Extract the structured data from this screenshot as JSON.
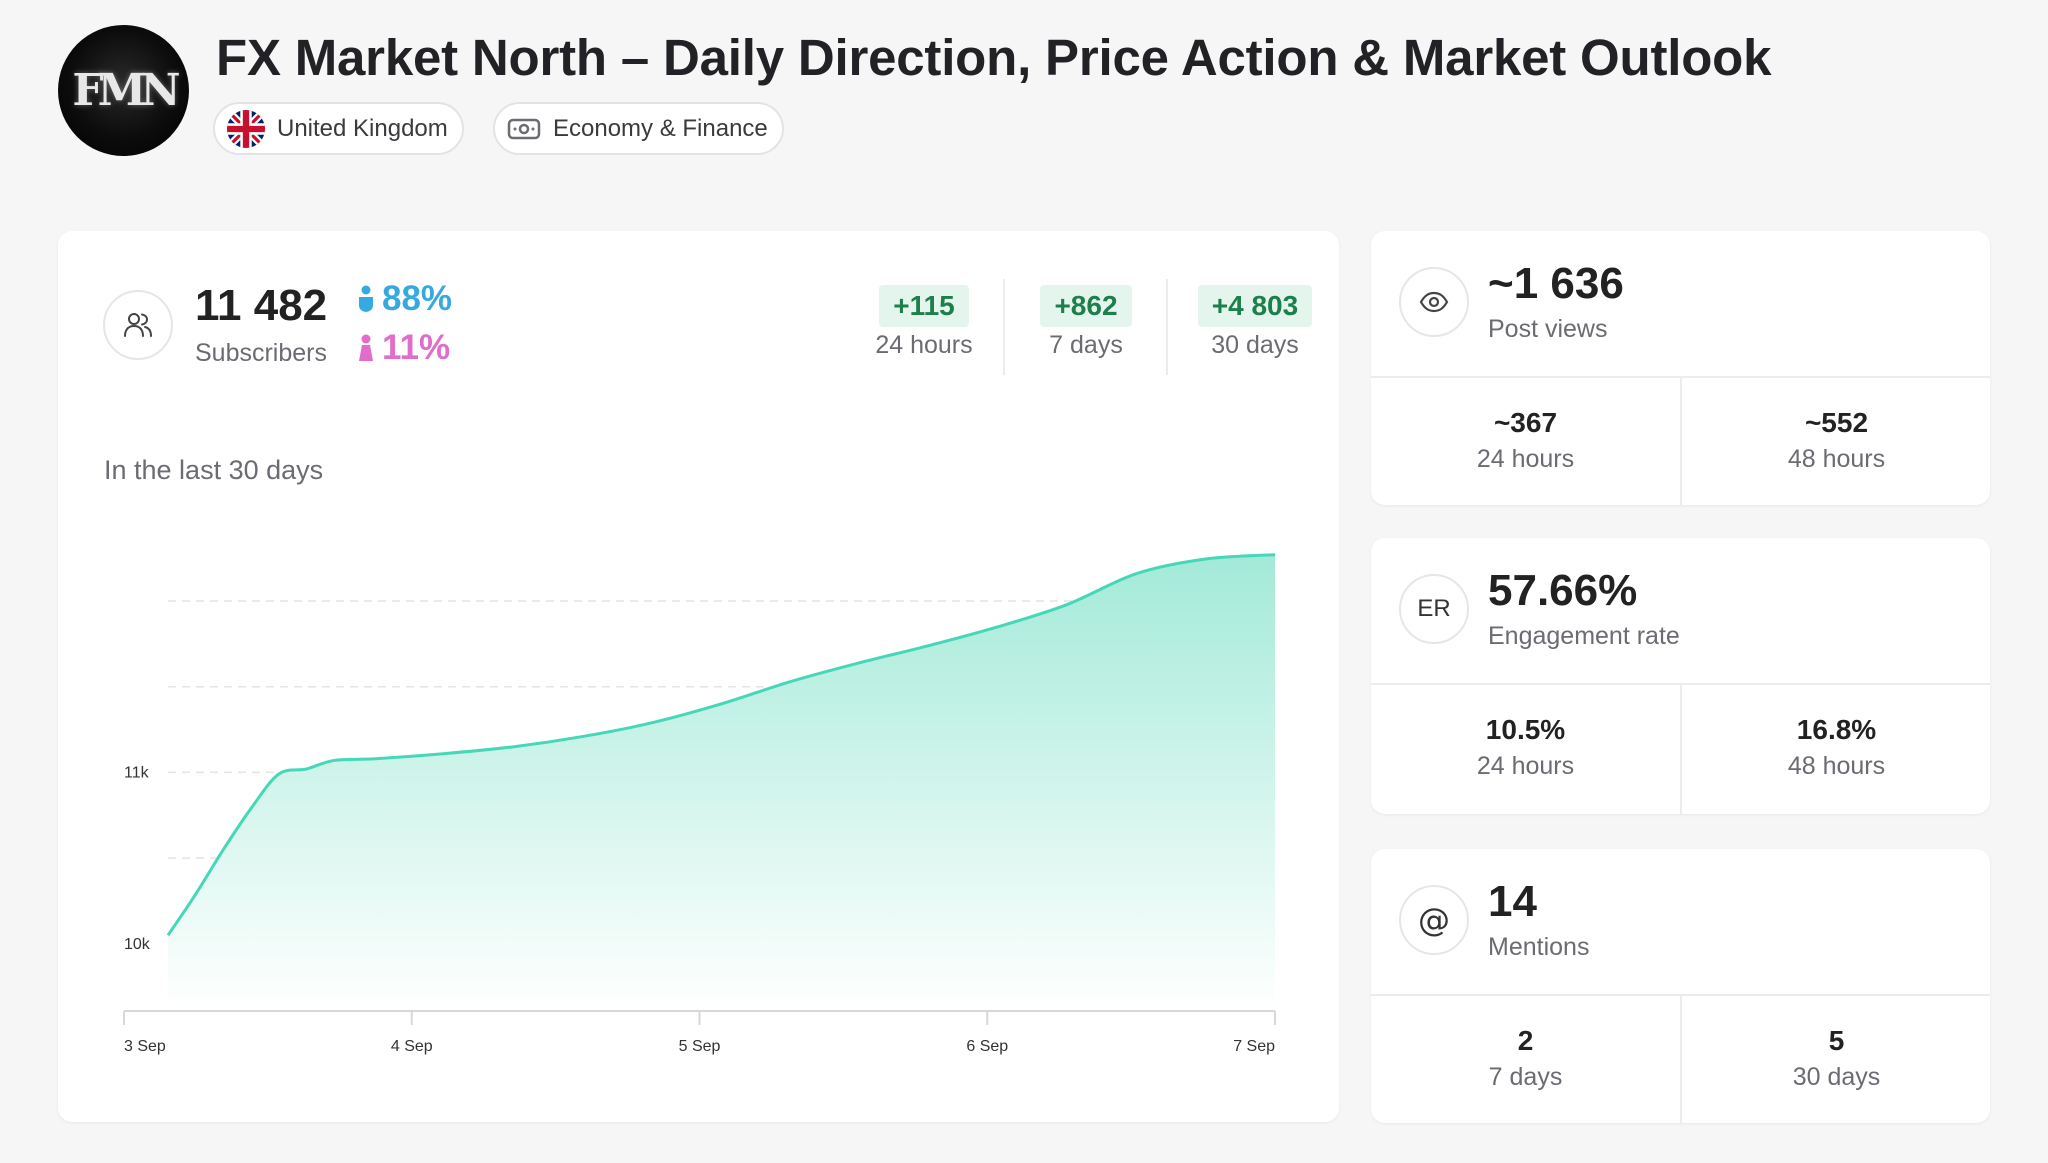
{
  "header": {
    "title": "FX Market North – Daily Direction, Price Action & Market Outlook",
    "avatar_text": "FMN",
    "chips": [
      {
        "label": "United Kingdom",
        "icon": "uk-flag-icon"
      },
      {
        "label": "Economy & Finance",
        "icon": "money-icon"
      }
    ]
  },
  "subscribers": {
    "value": "11 482",
    "label": "Subscribers",
    "male_pct": "88%",
    "female_pct": "11%",
    "growth": [
      {
        "value": "+115",
        "label": "24 hours"
      },
      {
        "value": "+862",
        "label": "7 days"
      },
      {
        "value": "+4 803",
        "label": "30 days"
      }
    ]
  },
  "chart_caption": "In the last 30 days",
  "chart_data": {
    "type": "area",
    "title": "",
    "xlabel": "",
    "ylabel": "",
    "x_ticks": [
      "3 Sep",
      "4 Sep",
      "5 Sep",
      "6 Sep",
      "7 Sep"
    ],
    "y_ticks": [
      "10k",
      "11k"
    ],
    "ylim": [
      9620,
      12350
    ],
    "grid": true,
    "series": [
      {
        "x": [
          0,
          0.1,
          0.2,
          0.3,
          0.4,
          0.5,
          0.6,
          0.75,
          1.0,
          1.25,
          1.5,
          1.75,
          2.0,
          2.25,
          2.5,
          2.75,
          3.0,
          3.25,
          3.5,
          3.75,
          4.0
        ],
        "values": [
          10050,
          10290,
          10550,
          10790,
          10990,
          11020,
          11070,
          11080,
          11110,
          11150,
          11210,
          11290,
          11400,
          11530,
          11640,
          11740,
          11850,
          11980,
          12160,
          12245,
          12270
        ]
      }
    ],
    "colors": {
      "line": "#46d7b9",
      "fill_top": "#a3ead8",
      "fill_bottom": "#ffffff"
    }
  },
  "views": {
    "value": "~1 636",
    "label": "Post views",
    "left_value": "~367",
    "left_label": "24 hours",
    "right_value": "~552",
    "right_label": "48 hours"
  },
  "engagement": {
    "icon_text": "ER",
    "value": "57.66%",
    "label": "Engagement rate",
    "left_value": "10.5%",
    "left_label": "24 hours",
    "right_value": "16.8%",
    "right_label": "48 hours"
  },
  "mentions": {
    "icon_text": "@",
    "value": "14",
    "label": "Mentions",
    "left_value": "2",
    "left_label": "7 days",
    "right_value": "5",
    "right_label": "30 days"
  }
}
